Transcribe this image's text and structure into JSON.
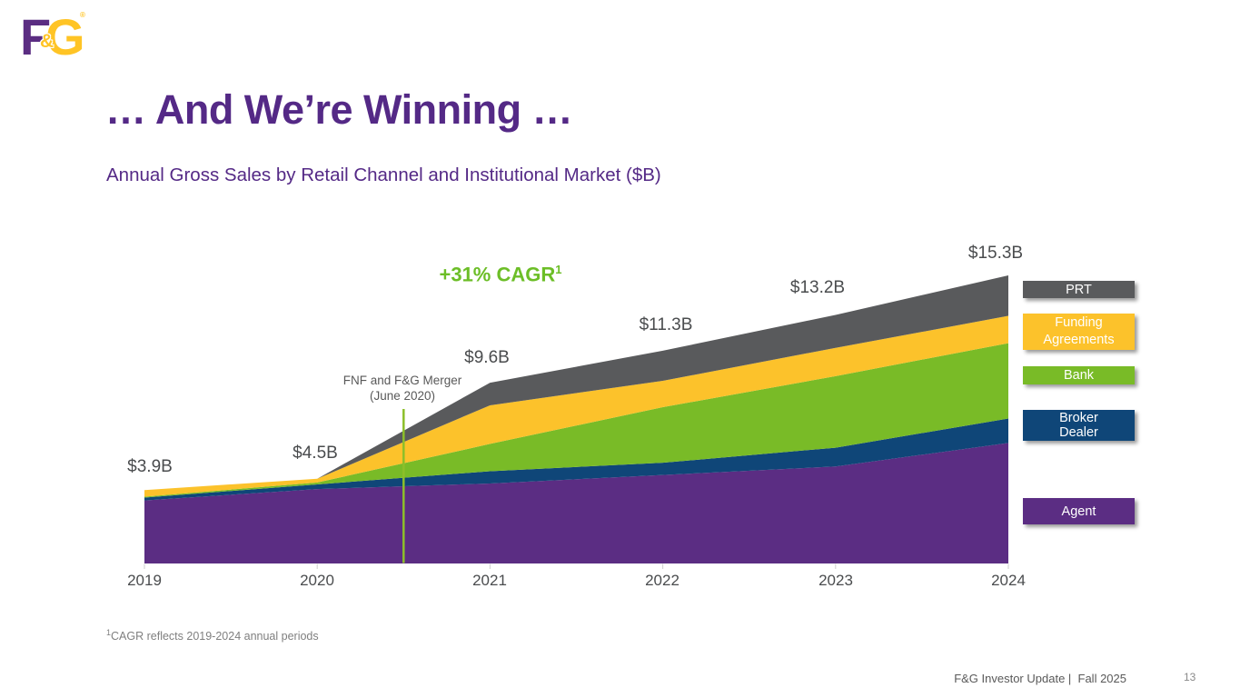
{
  "logo": {
    "f": "F",
    "amp": "&",
    "g": "G",
    "reg": "®"
  },
  "header": {
    "title": "… And We’re Winning …",
    "subtitle": "Annual Gross Sales by Retail Channel and Institutional Market ($B)"
  },
  "chart_data": {
    "type": "area",
    "stacked": true,
    "title": "Annual Gross Sales by Retail Channel and Institutional Market ($B)",
    "units": "$B",
    "x": [
      2019,
      2020,
      2021,
      2022,
      2023,
      2024
    ],
    "x_labels": [
      "2019",
      "2020",
      "2021",
      "2022",
      "2023",
      "2024"
    ],
    "ylim": [
      0,
      16
    ],
    "grid": false,
    "legend_position": "right",
    "series": [
      {
        "name": "Agent",
        "color": "#5B2D83",
        "values": [
          3.35,
          3.95,
          4.25,
          4.7,
          5.15,
          6.4
        ]
      },
      {
        "name": "Broker Dealer",
        "color": "#0F4678",
        "values": [
          0.15,
          0.25,
          0.65,
          0.65,
          1.0,
          1.3
        ]
      },
      {
        "name": "Bank",
        "color": "#79BB27",
        "values": [
          0.05,
          0.1,
          1.45,
          2.95,
          3.8,
          4.0
        ]
      },
      {
        "name": "Funding Agreements",
        "color": "#FCC22B",
        "values": [
          0.35,
          0.2,
          2.05,
          1.4,
          1.5,
          1.45
        ]
      },
      {
        "name": "PRT",
        "color": "#595A5C",
        "values": [
          0.0,
          0.0,
          1.2,
          1.6,
          1.75,
          2.15
        ]
      }
    ],
    "totals": [
      3.9,
      4.5,
      9.6,
      11.3,
      13.2,
      15.3
    ],
    "total_labels": [
      "$3.9B",
      "$4.5B",
      "$9.6B",
      "$11.3B",
      "$13.2B",
      "$15.3B"
    ],
    "cagr": {
      "label": "+31% CAGR",
      "sup": "1",
      "color": "#6CBE27"
    },
    "annotation": {
      "line1": "FNF and F&G Merger",
      "line2": "(June 2020)",
      "x_year": 2020.5,
      "line_color": "#8CBF2A"
    }
  },
  "legend": {
    "items": [
      {
        "label": "PRT",
        "color": "#595A5C"
      },
      {
        "line1": "Funding",
        "line2": "Agreements",
        "color": "#FCC22B"
      },
      {
        "label": "Bank",
        "color": "#79BB27"
      },
      {
        "line1": "Broker",
        "line2": "Dealer",
        "color": "#0F4678"
      },
      {
        "label": "Agent",
        "color": "#5B2D83"
      }
    ]
  },
  "footnote": {
    "sup": "1",
    "text": "CAGR reflects 2019-2024 annual periods"
  },
  "footer": {
    "text": "F&G Investor Update |  Fall 2025",
    "page": "13"
  }
}
